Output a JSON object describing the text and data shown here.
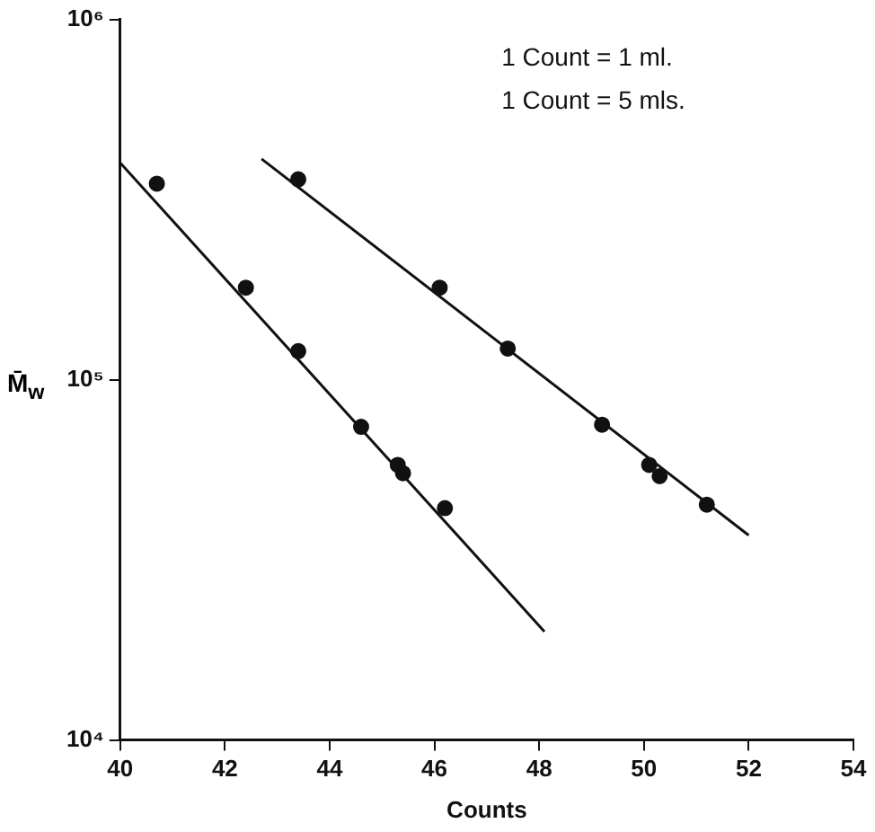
{
  "chart_data": {
    "type": "scatter",
    "xlabel": "Counts",
    "ylabel": "M̄$_{w}$",
    "log": "y",
    "xlim": [
      40,
      54
    ],
    "xticks": [
      40,
      42,
      44,
      46,
      48,
      50,
      52,
      54
    ],
    "ylim": [
      10000,
      1000000
    ],
    "yticks": [
      {
        "value": 10000,
        "label": "10⁴"
      },
      {
        "value": 100000,
        "label": "10⁵"
      },
      {
        "value": 1000000,
        "label": "10⁶"
      }
    ],
    "grid": false,
    "legend": false,
    "marker": "circle",
    "annotations": [
      "1 Count = 1 ml.",
      "1 Count = 5 mls."
    ],
    "series": [
      {
        "color": "#111111",
        "x": [
          40.7,
          42.4,
          43.4,
          44.6,
          45.3,
          45.4,
          46.2
        ],
        "values": [
          350000,
          180000,
          120000,
          74000,
          58000,
          55000,
          44000
        ]
      },
      {
        "color": "#111111",
        "x": [
          43.4,
          46.1,
          47.4,
          49.2,
          50.1,
          50.3,
          51.2
        ],
        "values": [
          360000,
          180000,
          122000,
          75000,
          58000,
          54000,
          45000
        ]
      },
      {
        "type": "line",
        "marker": "none",
        "color": "#111111",
        "x": [
          40,
          48.1
        ],
        "values": [
          400000,
          20000
        ]
      },
      {
        "type": "line",
        "marker": "none",
        "color": "#111111",
        "x": [
          42.7,
          52
        ],
        "values": [
          410000,
          37000
        ]
      }
    ]
  }
}
